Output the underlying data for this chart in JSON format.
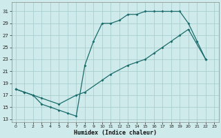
{
  "xlabel": "Humidex (Indice chaleur)",
  "bg_color": "#ceeaea",
  "grid_color": "#aacece",
  "line_color": "#1a6b6b",
  "xlim": [
    -0.5,
    23.5
  ],
  "ylim": [
    12.5,
    32.5
  ],
  "yticks": [
    13,
    15,
    17,
    19,
    21,
    23,
    25,
    27,
    29,
    31
  ],
  "xticks": [
    0,
    1,
    2,
    3,
    4,
    5,
    6,
    7,
    8,
    9,
    10,
    11,
    12,
    13,
    14,
    15,
    16,
    17,
    18,
    19,
    20,
    21,
    22,
    23
  ],
  "line1_x": [
    0,
    1,
    2,
    3,
    4,
    5,
    6,
    7,
    8,
    9,
    10,
    11,
    12,
    13,
    14,
    15,
    16,
    17,
    18,
    19,
    20,
    21,
    22
  ],
  "line1_y": [
    18,
    17.5,
    17,
    15.5,
    15,
    14.5,
    14,
    13.5,
    22,
    26,
    29,
    29,
    29.5,
    30.5,
    30.5,
    31,
    31,
    31,
    31,
    31,
    29,
    26,
    23
  ],
  "line2_x": [
    0,
    1,
    2,
    3,
    5,
    7,
    8,
    10,
    11,
    13,
    14,
    15,
    16,
    17,
    18,
    19,
    20,
    22
  ],
  "line2_y": [
    18,
    17.5,
    17,
    16.5,
    15.5,
    17,
    17.5,
    19.5,
    20.5,
    22,
    22.5,
    23,
    24,
    25,
    26,
    27,
    28,
    23
  ]
}
